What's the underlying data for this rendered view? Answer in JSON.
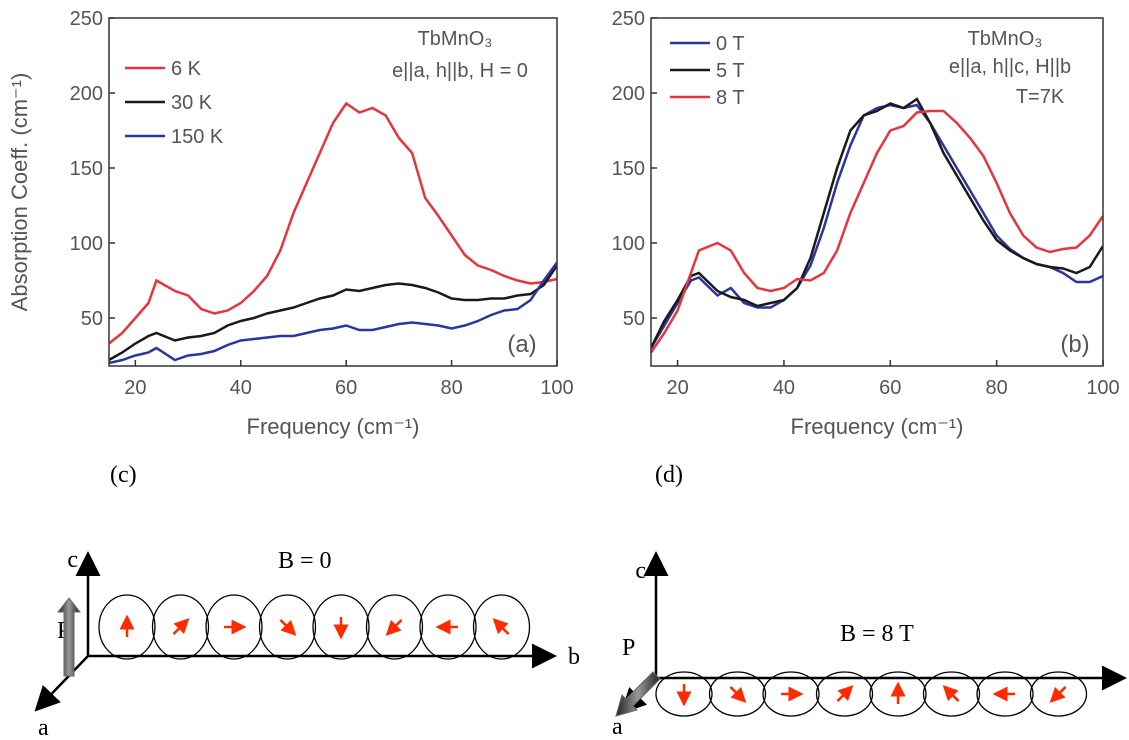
{
  "chart_data": [
    {
      "type": "line",
      "panel": "(a)",
      "annotations": [
        "TbMnO₃",
        "e||a, h||b, H = 0"
      ],
      "x_label": "Frequency (cm⁻¹)",
      "y_label": "Absorption Coeff. (cm⁻¹)",
      "x": [
        15,
        17.5,
        20,
        22.5,
        24,
        27.5,
        30,
        32.5,
        35,
        37.5,
        40,
        42.5,
        45,
        47.5,
        50,
        52.5,
        55,
        57.5,
        60,
        62.5,
        65,
        67.5,
        70,
        72.5,
        75,
        77.5,
        80,
        82.5,
        85,
        87.5,
        90,
        92.5,
        95,
        97.5,
        100
      ],
      "series": [
        {
          "name": "6 K",
          "color": "#e8343c",
          "values": [
            33,
            40,
            50,
            60,
            75,
            68,
            65,
            56,
            53,
            55,
            60,
            68,
            78,
            95,
            120,
            140,
            160,
            180,
            193,
            187,
            190,
            185,
            170,
            160,
            130,
            118,
            105,
            92,
            85,
            82,
            78,
            75,
            73,
            74,
            76
          ]
        },
        {
          "name": "30 K",
          "color": "#1a1a1a",
          "values": [
            22,
            27,
            33,
            38,
            40,
            35,
            37,
            38,
            40,
            45,
            48,
            50,
            53,
            55,
            57,
            60,
            63,
            65,
            69,
            68,
            70,
            72,
            73,
            72,
            70,
            67,
            63,
            62,
            62,
            63,
            63,
            65,
            66,
            72,
            85
          ]
        },
        {
          "name": "150 K",
          "color": "#2a35a0",
          "values": [
            20,
            22,
            25,
            27,
            30,
            22,
            25,
            26,
            28,
            32,
            35,
            36,
            37,
            38,
            38,
            40,
            42,
            43,
            45,
            42,
            42,
            44,
            46,
            47,
            46,
            45,
            43,
            45,
            48,
            52,
            55,
            56,
            62,
            75,
            87
          ]
        }
      ],
      "xlim": [
        15,
        100
      ],
      "xticks": [
        20,
        40,
        60,
        80,
        100
      ],
      "ylim": [
        18,
        250
      ],
      "yticks": [
        50,
        100,
        150,
        200,
        250
      ]
    },
    {
      "type": "line",
      "panel": "(b)",
      "annotations": [
        "TbMnO₃",
        "e||a, h||c, H||b",
        "T=7K"
      ],
      "x_label": "Frequency (cm⁻¹)",
      "x": [
        15,
        17.5,
        20,
        22.5,
        24,
        27.5,
        30,
        32.5,
        35,
        37.5,
        40,
        42.5,
        45,
        47.5,
        50,
        52.5,
        55,
        57.5,
        60,
        62.5,
        65,
        67.5,
        70,
        72.5,
        75,
        77.5,
        80,
        82.5,
        85,
        87.5,
        90,
        92.5,
        95,
        97.5,
        100
      ],
      "series": [
        {
          "name": "0 T",
          "color": "#2a35a0",
          "values": [
            30,
            45,
            60,
            75,
            77,
            65,
            70,
            60,
            57,
            57,
            62,
            70,
            85,
            110,
            140,
            165,
            185,
            190,
            192,
            190,
            192,
            180,
            165,
            150,
            135,
            120,
            105,
            96,
            90,
            86,
            84,
            80,
            74,
            74,
            78
          ]
        },
        {
          "name": "5 T",
          "color": "#1a1a1a",
          "values": [
            30,
            48,
            62,
            78,
            80,
            68,
            64,
            62,
            58,
            60,
            62,
            70,
            90,
            120,
            150,
            175,
            185,
            188,
            193,
            190,
            196,
            180,
            160,
            145,
            130,
            115,
            102,
            95,
            90,
            86,
            84,
            83,
            80,
            84,
            98
          ]
        },
        {
          "name": "8 T",
          "color": "#e8343c",
          "values": [
            27,
            40,
            55,
            80,
            95,
            100,
            95,
            80,
            70,
            68,
            70,
            76,
            75,
            80,
            95,
            120,
            140,
            160,
            175,
            178,
            187,
            188,
            188,
            180,
            170,
            158,
            140,
            120,
            105,
            97,
            94,
            96,
            97,
            105,
            118
          ]
        }
      ],
      "xlim": [
        15,
        100
      ],
      "xticks": [
        20,
        40,
        60,
        80,
        100
      ],
      "ylim": [
        18,
        250
      ],
      "yticks": [
        50,
        100,
        150,
        200,
        250
      ]
    }
  ],
  "diagrams": [
    {
      "panel": "(c)",
      "field": "B = 0",
      "axis_c": "c",
      "axis_b": "b",
      "axis_a": "a",
      "polarization": "P"
    },
    {
      "panel": "(d)",
      "field": "B = 8 T",
      "axis_c": "c",
      "axis_a": "a",
      "polarization": "P"
    }
  ]
}
